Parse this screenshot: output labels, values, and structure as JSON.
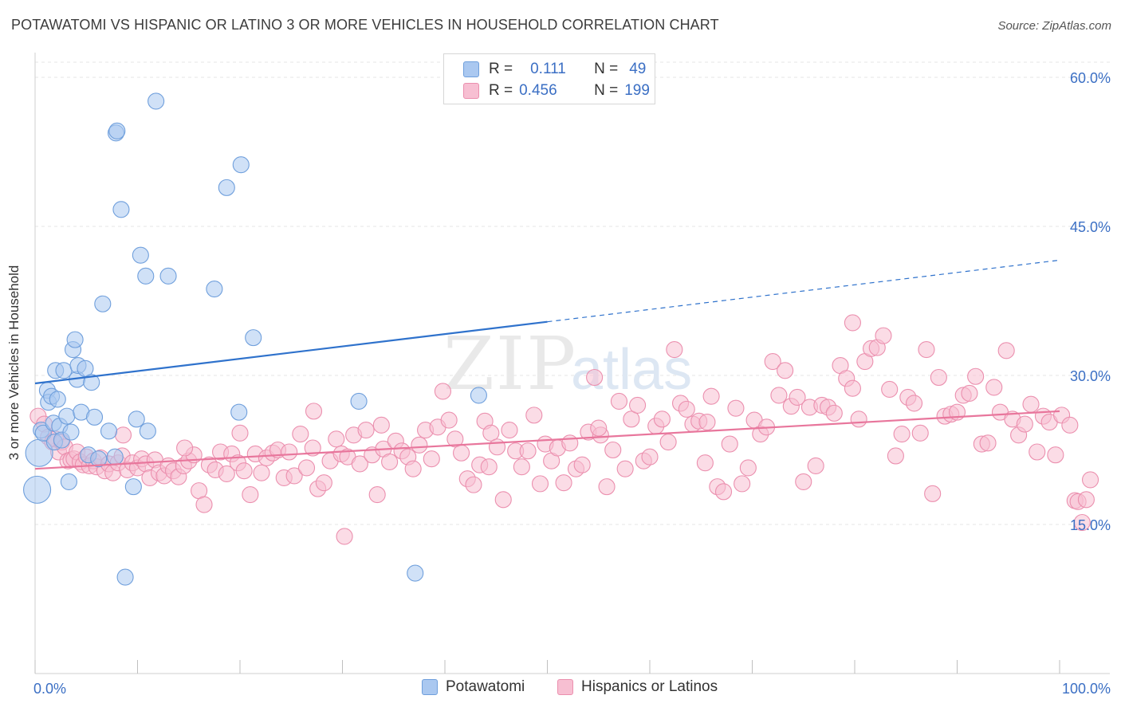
{
  "header": {
    "title": "POTAWATOMI VS HISPANIC OR LATINO 3 OR MORE VEHICLES IN HOUSEHOLD CORRELATION CHART",
    "source": "Source: ZipAtlas.com"
  },
  "watermark": "ZIPatlas",
  "legend": {
    "rows": [
      {
        "r_label": "R =",
        "r_value": "0.111",
        "n_label": "N =",
        "n_value": "49"
      },
      {
        "r_label": "R =",
        "r_value": "0.456",
        "n_label": "N =",
        "n_value": "199"
      }
    ]
  },
  "bottom_legend": {
    "items": [
      {
        "label": "Potawatomi"
      },
      {
        "label": "Hispanics or Latinos"
      }
    ]
  },
  "colors": {
    "blue_fill": "#aac8f0",
    "blue_stroke": "#6f9fdc",
    "blue_line": "#2f72cc",
    "pink_fill": "#f7bfd2",
    "pink_stroke": "#eb8fae",
    "pink_line": "#e8769c",
    "axis_text": "#3b6fc4",
    "grid": "#e6e6e6"
  },
  "chart_data": {
    "type": "scatter",
    "title": "POTAWATOMI VS HISPANIC OR LATINO 3 OR MORE VEHICLES IN HOUSEHOLD CORRELATION CHART",
    "xlabel": "",
    "ylabel": "3 or more Vehicles in Household",
    "xlim": [
      0,
      100
    ],
    "ylim": [
      0,
      61.5
    ],
    "x_tick_labels": [
      "0.0%",
      "100.0%"
    ],
    "y_ticks": [
      15,
      30,
      45,
      60
    ],
    "y_tick_labels": [
      "15.0%",
      "30.0%",
      "45.0%",
      "60.0%"
    ],
    "grid": true,
    "legend_position": "top-center",
    "series": [
      {
        "name": "Potawatomi",
        "R": 0.111,
        "N": 49,
        "trend": {
          "x0": 0,
          "y0": 29.2,
          "x1": 50,
          "y1": 35.4,
          "dashed_to_x": 100,
          "dashed_to_y": 41.6
        },
        "points": [
          [
            0.2,
            18.5
          ],
          [
            0.4,
            22.2
          ],
          [
            0.6,
            24.5
          ],
          [
            0.8,
            24.2
          ],
          [
            1.2,
            28.5
          ],
          [
            1.3,
            27.3
          ],
          [
            1.6,
            27.9
          ],
          [
            1.8,
            25.2
          ],
          [
            1.9,
            23.3
          ],
          [
            2.0,
            30.5
          ],
          [
            2.2,
            27.6
          ],
          [
            2.4,
            24.9
          ],
          [
            2.6,
            23.5
          ],
          [
            2.8,
            30.5
          ],
          [
            3.1,
            25.9
          ],
          [
            3.3,
            19.3
          ],
          [
            3.5,
            24.3
          ],
          [
            3.7,
            32.6
          ],
          [
            3.9,
            33.6
          ],
          [
            4.1,
            29.6
          ],
          [
            4.2,
            31.0
          ],
          [
            4.5,
            26.3
          ],
          [
            4.9,
            30.7
          ],
          [
            5.2,
            22.0
          ],
          [
            5.5,
            29.3
          ],
          [
            5.8,
            25.8
          ],
          [
            6.2,
            21.6
          ],
          [
            7.2,
            24.4
          ],
          [
            7.8,
            21.8
          ],
          [
            6.6,
            37.2
          ],
          [
            7.9,
            54.4
          ],
          [
            8.0,
            54.6
          ],
          [
            8.4,
            46.7
          ],
          [
            8.8,
            9.7
          ],
          [
            9.6,
            18.8
          ],
          [
            9.9,
            25.6
          ],
          [
            10.3,
            42.1
          ],
          [
            10.8,
            40.0
          ],
          [
            11.0,
            24.4
          ],
          [
            11.8,
            57.6
          ],
          [
            13.0,
            40.0
          ],
          [
            17.5,
            38.7
          ],
          [
            18.7,
            48.9
          ],
          [
            19.9,
            26.3
          ],
          [
            20.1,
            51.2
          ],
          [
            21.3,
            33.8
          ],
          [
            31.6,
            27.4
          ],
          [
            37.1,
            10.1
          ],
          [
            43.3,
            28.0
          ]
        ]
      },
      {
        "name": "Hispanics or Latinos",
        "R": 0.456,
        "N": 199,
        "trend": {
          "x0": 0,
          "y0": 20.6,
          "x1": 100,
          "y1": 26.4
        },
        "points": [
          [
            0.3,
            25.9
          ],
          [
            0.9,
            25.1
          ],
          [
            1.3,
            23.8
          ],
          [
            1.7,
            23.3
          ],
          [
            2.0,
            23.6
          ],
          [
            2.3,
            22.3
          ],
          [
            2.6,
            23.3
          ],
          [
            2.9,
            22.8
          ],
          [
            3.2,
            21.4
          ],
          [
            3.5,
            21.5
          ],
          [
            3.8,
            21.6
          ],
          [
            4.1,
            22.3
          ],
          [
            4.4,
            21.3
          ],
          [
            4.7,
            21.0
          ],
          [
            5.0,
            21.8
          ],
          [
            5.3,
            20.9
          ],
          [
            5.7,
            21.4
          ],
          [
            6.0,
            20.8
          ],
          [
            6.4,
            21.7
          ],
          [
            6.8,
            20.4
          ],
          [
            7.2,
            21.1
          ],
          [
            7.6,
            20.2
          ],
          [
            8.1,
            21.2
          ],
          [
            8.5,
            21.9
          ],
          [
            9.0,
            20.5
          ],
          [
            9.5,
            21.2
          ],
          [
            10.0,
            20.7
          ],
          [
            10.4,
            21.6
          ],
          [
            10.8,
            21.1
          ],
          [
            11.2,
            19.7
          ],
          [
            11.7,
            21.5
          ],
          [
            12.1,
            20.2
          ],
          [
            12.6,
            19.9
          ],
          [
            13.0,
            20.9
          ],
          [
            13.5,
            20.4
          ],
          [
            14.0,
            19.8
          ],
          [
            14.5,
            20.9
          ],
          [
            15.0,
            21.4
          ],
          [
            15.5,
            22.0
          ],
          [
            16.0,
            18.4
          ],
          [
            16.5,
            17.0
          ],
          [
            17.0,
            21.0
          ],
          [
            17.6,
            20.5
          ],
          [
            18.1,
            22.3
          ],
          [
            18.7,
            20.1
          ],
          [
            19.2,
            22.1
          ],
          [
            19.8,
            21.2
          ],
          [
            20.4,
            20.4
          ],
          [
            21.0,
            18.0
          ],
          [
            21.5,
            22.1
          ],
          [
            22.1,
            20.2
          ],
          [
            22.6,
            21.7
          ],
          [
            23.2,
            22.2
          ],
          [
            23.7,
            22.5
          ],
          [
            24.3,
            19.7
          ],
          [
            24.8,
            22.3
          ],
          [
            25.3,
            19.9
          ],
          [
            25.9,
            24.1
          ],
          [
            26.5,
            20.7
          ],
          [
            27.1,
            22.7
          ],
          [
            27.6,
            18.6
          ],
          [
            28.2,
            19.2
          ],
          [
            28.8,
            21.4
          ],
          [
            29.4,
            23.6
          ],
          [
            29.9,
            22.1
          ],
          [
            30.5,
            21.8
          ],
          [
            31.1,
            24.0
          ],
          [
            31.7,
            21.1
          ],
          [
            32.3,
            24.5
          ],
          [
            32.9,
            22.0
          ],
          [
            33.4,
            18.0
          ],
          [
            34.0,
            22.6
          ],
          [
            34.6,
            21.3
          ],
          [
            35.2,
            23.4
          ],
          [
            35.8,
            22.4
          ],
          [
            36.4,
            21.8
          ],
          [
            36.9,
            20.6
          ],
          [
            37.5,
            23.0
          ],
          [
            38.1,
            24.5
          ],
          [
            38.7,
            21.6
          ],
          [
            39.3,
            24.8
          ],
          [
            39.8,
            28.4
          ],
          [
            40.4,
            25.5
          ],
          [
            41.0,
            23.6
          ],
          [
            41.6,
            22.2
          ],
          [
            42.2,
            19.6
          ],
          [
            42.8,
            19.0
          ],
          [
            43.4,
            21.0
          ],
          [
            43.9,
            25.4
          ],
          [
            44.5,
            24.2
          ],
          [
            45.1,
            22.8
          ],
          [
            45.7,
            17.5
          ],
          [
            46.3,
            24.5
          ],
          [
            46.9,
            22.4
          ],
          [
            47.5,
            20.8
          ],
          [
            48.1,
            22.4
          ],
          [
            48.7,
            26.0
          ],
          [
            49.3,
            19.1
          ],
          [
            49.8,
            23.1
          ],
          [
            50.4,
            21.4
          ],
          [
            51.0,
            22.7
          ],
          [
            51.6,
            19.2
          ],
          [
            52.2,
            23.2
          ],
          [
            52.8,
            20.6
          ],
          [
            53.4,
            21.0
          ],
          [
            54.0,
            24.3
          ],
          [
            54.6,
            29.8
          ],
          [
            55.2,
            24.0
          ],
          [
            55.8,
            18.8
          ],
          [
            56.4,
            22.5
          ],
          [
            57.0,
            27.4
          ],
          [
            57.6,
            20.6
          ],
          [
            58.2,
            25.6
          ],
          [
            58.8,
            27.0
          ],
          [
            59.4,
            21.4
          ],
          [
            60.0,
            21.8
          ],
          [
            60.6,
            24.9
          ],
          [
            61.2,
            25.6
          ],
          [
            61.8,
            23.3
          ],
          [
            62.4,
            32.6
          ],
          [
            63.0,
            27.2
          ],
          [
            63.6,
            26.6
          ],
          [
            64.2,
            25.1
          ],
          [
            64.8,
            25.4
          ],
          [
            65.4,
            21.2
          ],
          [
            66.0,
            27.9
          ],
          [
            66.6,
            18.8
          ],
          [
            67.2,
            18.3
          ],
          [
            67.8,
            23.1
          ],
          [
            68.4,
            26.7
          ],
          [
            69.0,
            19.1
          ],
          [
            69.6,
            20.7
          ],
          [
            70.2,
            25.5
          ],
          [
            70.8,
            24.1
          ],
          [
            71.4,
            24.8
          ],
          [
            72.0,
            31.4
          ],
          [
            72.6,
            28.0
          ],
          [
            73.2,
            30.5
          ],
          [
            73.8,
            26.9
          ],
          [
            74.4,
            27.8
          ],
          [
            75.0,
            19.3
          ],
          [
            75.6,
            26.8
          ],
          [
            76.2,
            20.9
          ],
          [
            76.8,
            27.0
          ],
          [
            77.4,
            26.8
          ],
          [
            78.0,
            26.2
          ],
          [
            78.6,
            31.0
          ],
          [
            79.2,
            29.7
          ],
          [
            79.8,
            28.7
          ],
          [
            80.4,
            25.6
          ],
          [
            81.0,
            31.4
          ],
          [
            81.6,
            32.7
          ],
          [
            82.2,
            32.8
          ],
          [
            82.8,
            34.0
          ],
          [
            83.4,
            28.6
          ],
          [
            84.0,
            21.9
          ],
          [
            84.6,
            24.1
          ],
          [
            85.2,
            27.8
          ],
          [
            85.8,
            27.2
          ],
          [
            86.4,
            24.2
          ],
          [
            87.0,
            32.6
          ],
          [
            87.6,
            18.1
          ],
          [
            88.2,
            29.8
          ],
          [
            88.8,
            25.9
          ],
          [
            89.4,
            26.1
          ],
          [
            90.0,
            26.3
          ],
          [
            90.6,
            28.0
          ],
          [
            91.2,
            28.2
          ],
          [
            91.8,
            29.9
          ],
          [
            92.4,
            23.1
          ],
          [
            93.0,
            23.2
          ],
          [
            93.6,
            28.8
          ],
          [
            94.2,
            26.3
          ],
          [
            94.8,
            32.5
          ],
          [
            95.4,
            25.6
          ],
          [
            96.0,
            24.0
          ],
          [
            96.6,
            25.1
          ],
          [
            97.2,
            27.1
          ],
          [
            97.8,
            22.3
          ],
          [
            98.4,
            25.9
          ],
          [
            99.0,
            25.3
          ],
          [
            99.6,
            22.0
          ],
          [
            100.2,
            26.0
          ],
          [
            101.0,
            25.0
          ],
          [
            101.5,
            17.4
          ],
          [
            101.8,
            17.3
          ],
          [
            102.2,
            15.2
          ],
          [
            102.6,
            17.5
          ],
          [
            103.0,
            19.5
          ],
          [
            79.8,
            35.3
          ],
          [
            65.6,
            25.3
          ],
          [
            55.0,
            24.7
          ],
          [
            44.3,
            20.8
          ],
          [
            33.8,
            25.0
          ],
          [
            27.2,
            26.4
          ],
          [
            20.0,
            24.2
          ],
          [
            14.6,
            22.7
          ],
          [
            8.6,
            24.0
          ],
          [
            30.2,
            13.8
          ]
        ]
      }
    ]
  }
}
